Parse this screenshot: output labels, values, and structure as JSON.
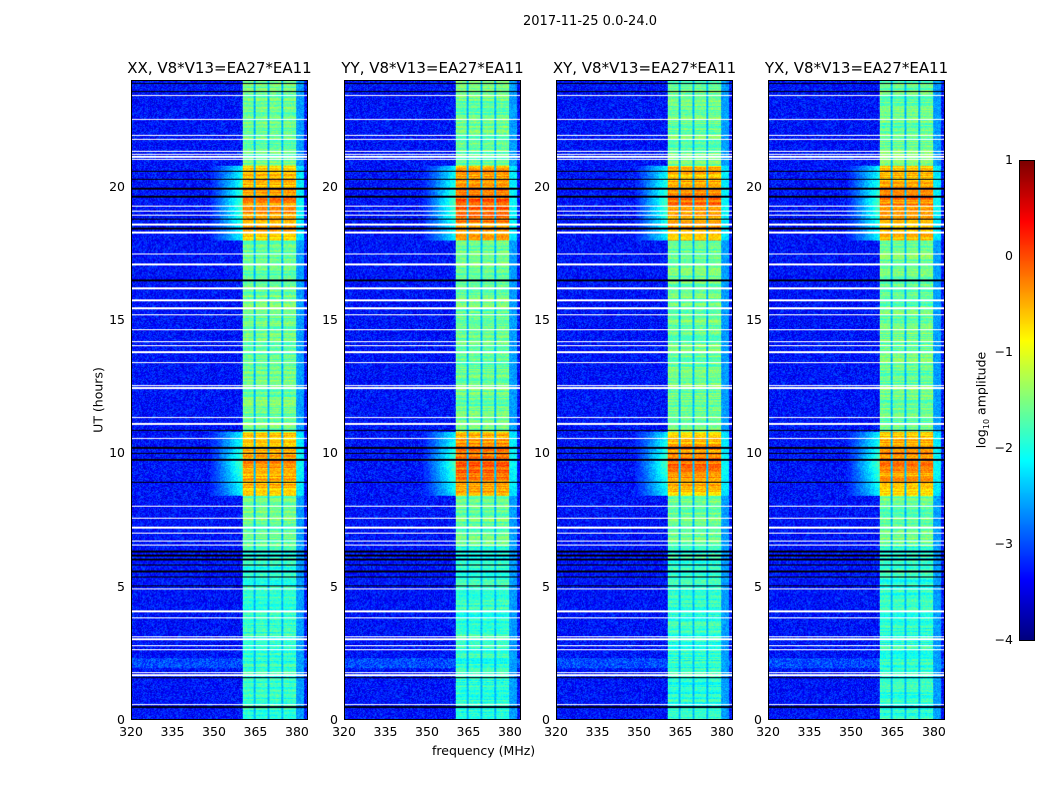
{
  "chart_data": {
    "type": "heatmap",
    "title": "2017-11-25 0.0-24.0",
    "xlabel": "frequency (MHz)",
    "ylabel": "UT (hours)",
    "xlim": [
      320,
      384
    ],
    "ylim": [
      0,
      24
    ],
    "xticks": [
      320,
      335,
      350,
      365,
      380
    ],
    "yticks": [
      0,
      5,
      10,
      15,
      20
    ],
    "panels": [
      {
        "title": "XX, V8*V13=EA27*EA11",
        "band_gain": 0.0
      },
      {
        "title": "YY, V8*V13=EA27*EA11",
        "band_gain": 0.25
      },
      {
        "title": "XY, V8*V13=EA27*EA11",
        "band_gain": 0.1
      },
      {
        "title": "YX, V8*V13=EA27*EA11",
        "band_gain": 0.05
      }
    ],
    "colorbar": {
      "label_prefix": "log",
      "label_sub": "10",
      "label_suffix": " amplitude",
      "colormap": "jet",
      "range": [
        -4,
        1
      ],
      "ticks": [
        "1",
        "0",
        "−1",
        "−2",
        "−3",
        "−4"
      ]
    },
    "signal_band_mhz": [
      360.5,
      380
    ],
    "band_dividers_mhz": [
      365,
      370,
      375
    ],
    "strong_periods_ut": [
      [
        8.4,
        10.8
      ],
      [
        18.0,
        20.8
      ]
    ],
    "flagged_rows_ut": [
      0.55,
      1.65,
      1.75,
      2.6,
      2.75,
      3.0,
      3.1,
      3.8,
      4.05,
      4.9,
      6.55,
      6.7,
      7.0,
      7.2,
      7.55,
      8.0,
      10.55,
      11.1,
      11.35,
      12.45,
      12.55,
      13.4,
      13.8,
      14.05,
      14.2,
      14.65,
      15.2,
      15.45,
      15.75,
      16.2,
      17.1,
      17.5,
      18.3,
      18.6,
      18.95,
      19.1,
      19.3,
      21.05,
      21.15,
      21.25,
      21.35,
      21.8,
      21.95,
      22.55,
      23.45
    ],
    "dark_rows_ut": [
      0.45,
      1.55,
      5.0,
      5.35,
      5.55,
      5.8,
      6.0,
      6.15,
      6.3,
      8.9,
      9.75,
      10.0,
      10.2,
      10.85,
      16.5,
      18.45,
      18.8,
      19.65,
      19.95,
      20.3,
      20.6,
      23.6,
      23.9
    ]
  }
}
